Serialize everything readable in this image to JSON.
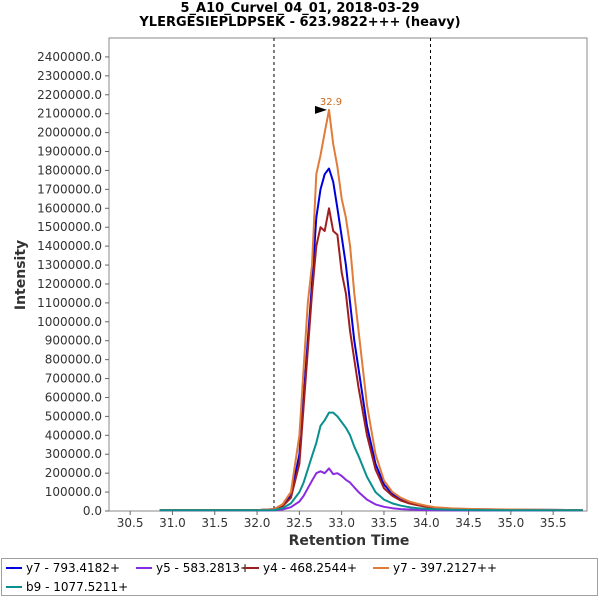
{
  "chart_data": {
    "type": "line",
    "title": "5_A10_Curvel_04_01, 2018-03-29",
    "subtitle": "YLERGESIEPLDPSEK - 623.9822+++ (heavy)",
    "xlabel": "Retention Time",
    "ylabel": "Intensity",
    "xlim": [
      30.25,
      35.9
    ],
    "ylim": [
      0,
      2500000
    ],
    "x_ticks": [
      "30.5",
      "31.0",
      "31.5",
      "32.0",
      "32.5",
      "33.0",
      "33.5",
      "34.0",
      "34.5",
      "35.0",
      "35.5"
    ],
    "x_tick_values": [
      30.5,
      31.0,
      31.5,
      32.0,
      32.5,
      33.0,
      33.5,
      34.0,
      34.5,
      35.0,
      35.5
    ],
    "y_ticks": [
      "0.0",
      "100000.0",
      "200000.0",
      "300000.0",
      "400000.0",
      "500000.0",
      "600000.0",
      "700000.0",
      "800000.0",
      "900000.0",
      "1000000.0",
      "1100000.0",
      "1200000.0",
      "1300000.0",
      "1400000.0",
      "1500000.0",
      "1600000.0",
      "1700000.0",
      "1800000.0",
      "1900000.0",
      "2000000.0",
      "2100000.0",
      "2200000.0",
      "2300000.0",
      "2400000.0"
    ],
    "y_tick_values": [
      0,
      100000,
      200000,
      300000,
      400000,
      500000,
      600000,
      700000,
      800000,
      900000,
      1000000,
      1100000,
      1200000,
      1300000,
      1400000,
      1500000,
      1600000,
      1700000,
      1800000,
      1900000,
      2000000,
      2100000,
      2200000,
      2300000,
      2400000
    ],
    "integration_bounds": [
      32.2,
      34.05
    ],
    "peak_annotation": {
      "label": "32.9",
      "x": 32.85,
      "y": 2120000,
      "color": "#cc6a1d"
    },
    "series": [
      {
        "name": "y7 - 793.4182+",
        "color": "#0000dd",
        "x": [
          30.85,
          31.5,
          32.0,
          32.2,
          32.3,
          32.4,
          32.5,
          32.55,
          32.6,
          32.65,
          32.7,
          32.75,
          32.8,
          32.85,
          32.9,
          32.95,
          33.0,
          33.05,
          33.1,
          33.15,
          33.2,
          33.3,
          33.4,
          33.5,
          33.6,
          33.7,
          33.8,
          33.9,
          34.0,
          34.1,
          34.3,
          34.6,
          35.0,
          35.5,
          35.85
        ],
        "y": [
          5000,
          5000,
          5000,
          10000,
          30000,
          80000,
          300000,
          600000,
          900000,
          1200000,
          1550000,
          1700000,
          1780000,
          1810000,
          1740000,
          1600000,
          1450000,
          1300000,
          1100000,
          900000,
          750000,
          450000,
          250000,
          140000,
          90000,
          60000,
          45000,
          35000,
          25000,
          18000,
          12000,
          9000,
          7000,
          6000,
          5000
        ]
      },
      {
        "name": "y5 - 583.2813+",
        "color": "#8a2be2",
        "x": [
          30.85,
          31.5,
          32.0,
          32.2,
          32.3,
          32.4,
          32.5,
          32.55,
          32.6,
          32.65,
          32.7,
          32.75,
          32.8,
          32.85,
          32.9,
          32.95,
          33.0,
          33.05,
          33.1,
          33.15,
          33.2,
          33.3,
          33.4,
          33.5,
          33.6,
          33.7,
          33.8,
          33.9,
          34.0,
          34.1,
          34.3,
          34.6,
          35.0,
          35.5,
          35.85
        ],
        "y": [
          3000,
          3000,
          3000,
          4000,
          8000,
          20000,
          50000,
          80000,
          120000,
          160000,
          200000,
          210000,
          200000,
          225000,
          195000,
          200000,
          185000,
          165000,
          150000,
          125000,
          100000,
          60000,
          35000,
          22000,
          15000,
          10000,
          8000,
          6000,
          5000,
          4000,
          3000,
          3000,
          3000,
          3000,
          3000
        ]
      },
      {
        "name": "y4 - 468.2544+",
        "color": "#a01e1e",
        "x": [
          30.85,
          31.5,
          32.0,
          32.2,
          32.3,
          32.4,
          32.5,
          32.55,
          32.6,
          32.65,
          32.7,
          32.75,
          32.8,
          32.85,
          32.9,
          32.95,
          33.0,
          33.05,
          33.1,
          33.15,
          33.2,
          33.3,
          33.4,
          33.5,
          33.6,
          33.7,
          33.8,
          33.9,
          34.0,
          34.1,
          34.3,
          34.6,
          35.0,
          35.5,
          35.85
        ],
        "y": [
          5000,
          5000,
          5000,
          8000,
          25000,
          70000,
          250000,
          550000,
          850000,
          1150000,
          1400000,
          1500000,
          1480000,
          1600000,
          1480000,
          1460000,
          1260000,
          1150000,
          950000,
          800000,
          650000,
          400000,
          220000,
          120000,
          80000,
          55000,
          40000,
          30000,
          22000,
          15000,
          10000,
          8000,
          6000,
          5000,
          5000
        ]
      },
      {
        "name": "y7 - 397.2127++",
        "color": "#e07b39",
        "x": [
          30.85,
          31.5,
          32.0,
          32.2,
          32.3,
          32.4,
          32.5,
          32.55,
          32.6,
          32.65,
          32.7,
          32.75,
          32.8,
          32.85,
          32.9,
          32.95,
          33.0,
          33.05,
          33.1,
          33.15,
          33.2,
          33.3,
          33.4,
          33.5,
          33.6,
          33.7,
          33.8,
          33.9,
          34.0,
          34.1,
          34.3,
          34.6,
          35.0,
          35.5,
          35.85
        ],
        "y": [
          5000,
          5000,
          5000,
          10000,
          35000,
          100000,
          400000,
          750000,
          1100000,
          1300000,
          1780000,
          1880000,
          2000000,
          2120000,
          1940000,
          1820000,
          1650000,
          1550000,
          1400000,
          1150000,
          950000,
          560000,
          300000,
          160000,
          100000,
          70000,
          50000,
          38000,
          28000,
          20000,
          14000,
          10000,
          8000,
          6000,
          5000
        ]
      },
      {
        "name": "b9 - 1077.5211+",
        "color": "#0a8f8f",
        "x": [
          30.85,
          31.5,
          32.0,
          32.2,
          32.3,
          32.4,
          32.5,
          32.55,
          32.6,
          32.65,
          32.7,
          32.75,
          32.8,
          32.85,
          32.9,
          32.95,
          33.0,
          33.05,
          33.1,
          33.15,
          33.2,
          33.3,
          33.4,
          33.5,
          33.6,
          33.7,
          33.8,
          33.9,
          34.0,
          34.1,
          34.3,
          34.6,
          35.0,
          35.5,
          35.85
        ],
        "y": [
          4000,
          4000,
          4000,
          5000,
          15000,
          40000,
          100000,
          150000,
          220000,
          290000,
          360000,
          450000,
          480000,
          520000,
          520000,
          500000,
          470000,
          440000,
          400000,
          340000,
          290000,
          180000,
          100000,
          60000,
          40000,
          28000,
          20000,
          15000,
          12000,
          9000,
          7000,
          5000,
          4000,
          4000,
          4000
        ]
      }
    ]
  }
}
